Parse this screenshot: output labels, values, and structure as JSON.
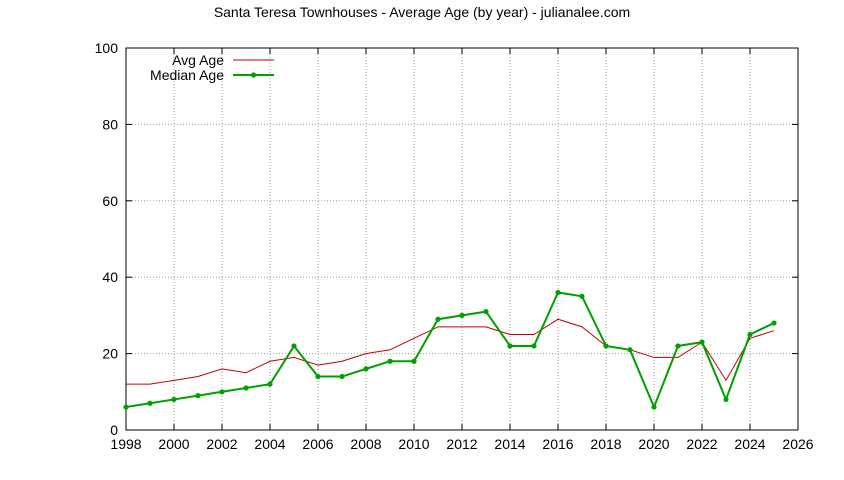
{
  "chart_data": {
    "type": "line",
    "title": "Santa Teresa Townhouses - Average Age (by year) - julianalee.com",
    "xlabel": "",
    "ylabel": "",
    "xlim": [
      1998,
      2026
    ],
    "ylim": [
      0,
      100
    ],
    "x_ticks": [
      1998,
      2000,
      2002,
      2004,
      2006,
      2008,
      2010,
      2012,
      2014,
      2016,
      2018,
      2020,
      2022,
      2024,
      2026
    ],
    "y_ticks": [
      0,
      20,
      40,
      60,
      80,
      100
    ],
    "grid": true,
    "legend_position": "top-left",
    "x": [
      1998,
      1999,
      2000,
      2001,
      2002,
      2003,
      2004,
      2005,
      2006,
      2007,
      2008,
      2009,
      2010,
      2011,
      2012,
      2013,
      2014,
      2015,
      2016,
      2017,
      2018,
      2019,
      2020,
      2021,
      2022,
      2023,
      2024,
      2025
    ],
    "series": [
      {
        "name": "Avg Age",
        "color": "#c00000",
        "marker": false,
        "values": [
          12,
          12,
          13,
          14,
          16,
          15,
          18,
          19,
          17,
          18,
          20,
          21,
          24,
          27,
          27,
          27,
          25,
          25,
          29,
          27,
          22,
          21,
          19,
          19,
          23,
          13,
          24,
          26
        ]
      },
      {
        "name": "Median Age",
        "color": "#00a000",
        "marker": true,
        "values": [
          6,
          7,
          8,
          9,
          10,
          11,
          12,
          22,
          14,
          14,
          16,
          18,
          18,
          29,
          30,
          31,
          22,
          22,
          36,
          35,
          22,
          21,
          6,
          22,
          23,
          8,
          25,
          28
        ]
      }
    ]
  }
}
